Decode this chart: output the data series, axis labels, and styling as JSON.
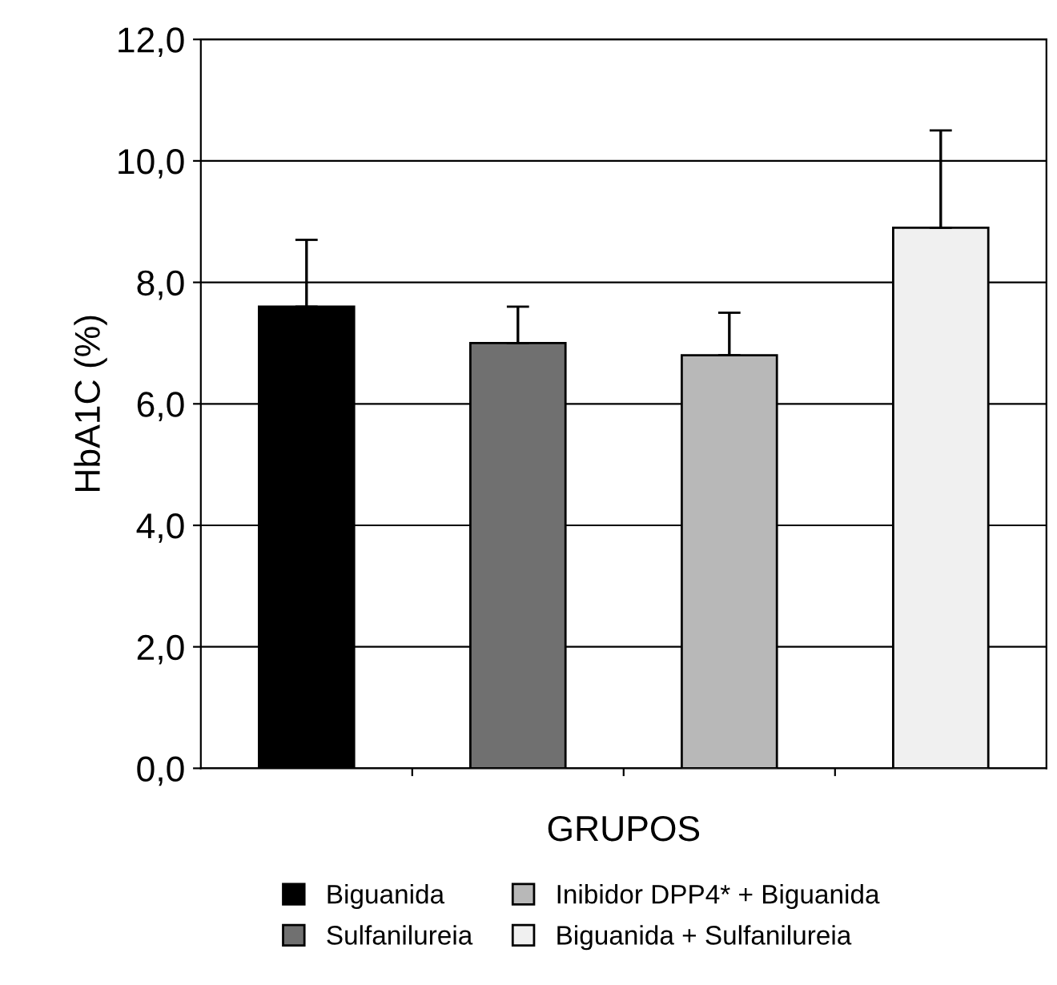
{
  "chart_data": {
    "type": "bar",
    "xlabel": "GRUPOS",
    "ylabel": "HbA1C (%)",
    "categories": [
      null,
      null,
      null,
      null
    ],
    "series": [
      {
        "name": "Biguanida",
        "color": "#000000",
        "values": [
          7.6,
          null,
          null,
          null
        ],
        "errors": [
          [
            7.6,
            8.7
          ],
          null,
          null,
          null
        ]
      },
      {
        "name": "Sulfanilureia",
        "color": "#707070",
        "values": [
          null,
          7.0,
          null,
          null
        ],
        "errors": [
          null,
          [
            7.0,
            7.6
          ],
          null,
          null
        ]
      },
      {
        "name": "Inibidor DPP4* + Biguanida",
        "color": "#b8b8b8",
        "values": [
          null,
          null,
          6.8,
          null
        ],
        "errors": [
          null,
          null,
          [
            6.8,
            7.5
          ],
          null
        ]
      },
      {
        "name": "Biguanida + Sulfanilureia",
        "color": "#f0f0f0",
        "values": [
          null,
          null,
          null,
          8.9
        ],
        "errors": [
          null,
          null,
          null,
          [
            8.9,
            10.5
          ]
        ]
      }
    ],
    "ylim": [
      0,
      12
    ],
    "yticks": [
      {
        "value": 0,
        "label": "0,0"
      },
      {
        "value": 2,
        "label": "2,0"
      },
      {
        "value": 4,
        "label": "4,0"
      },
      {
        "value": 6,
        "label": "6,0"
      },
      {
        "value": 8,
        "label": "8,0"
      },
      {
        "value": 10,
        "label": "10,0"
      },
      {
        "value": 12,
        "label": "12,0"
      }
    ],
    "grid": "y",
    "legend": "bottom"
  }
}
